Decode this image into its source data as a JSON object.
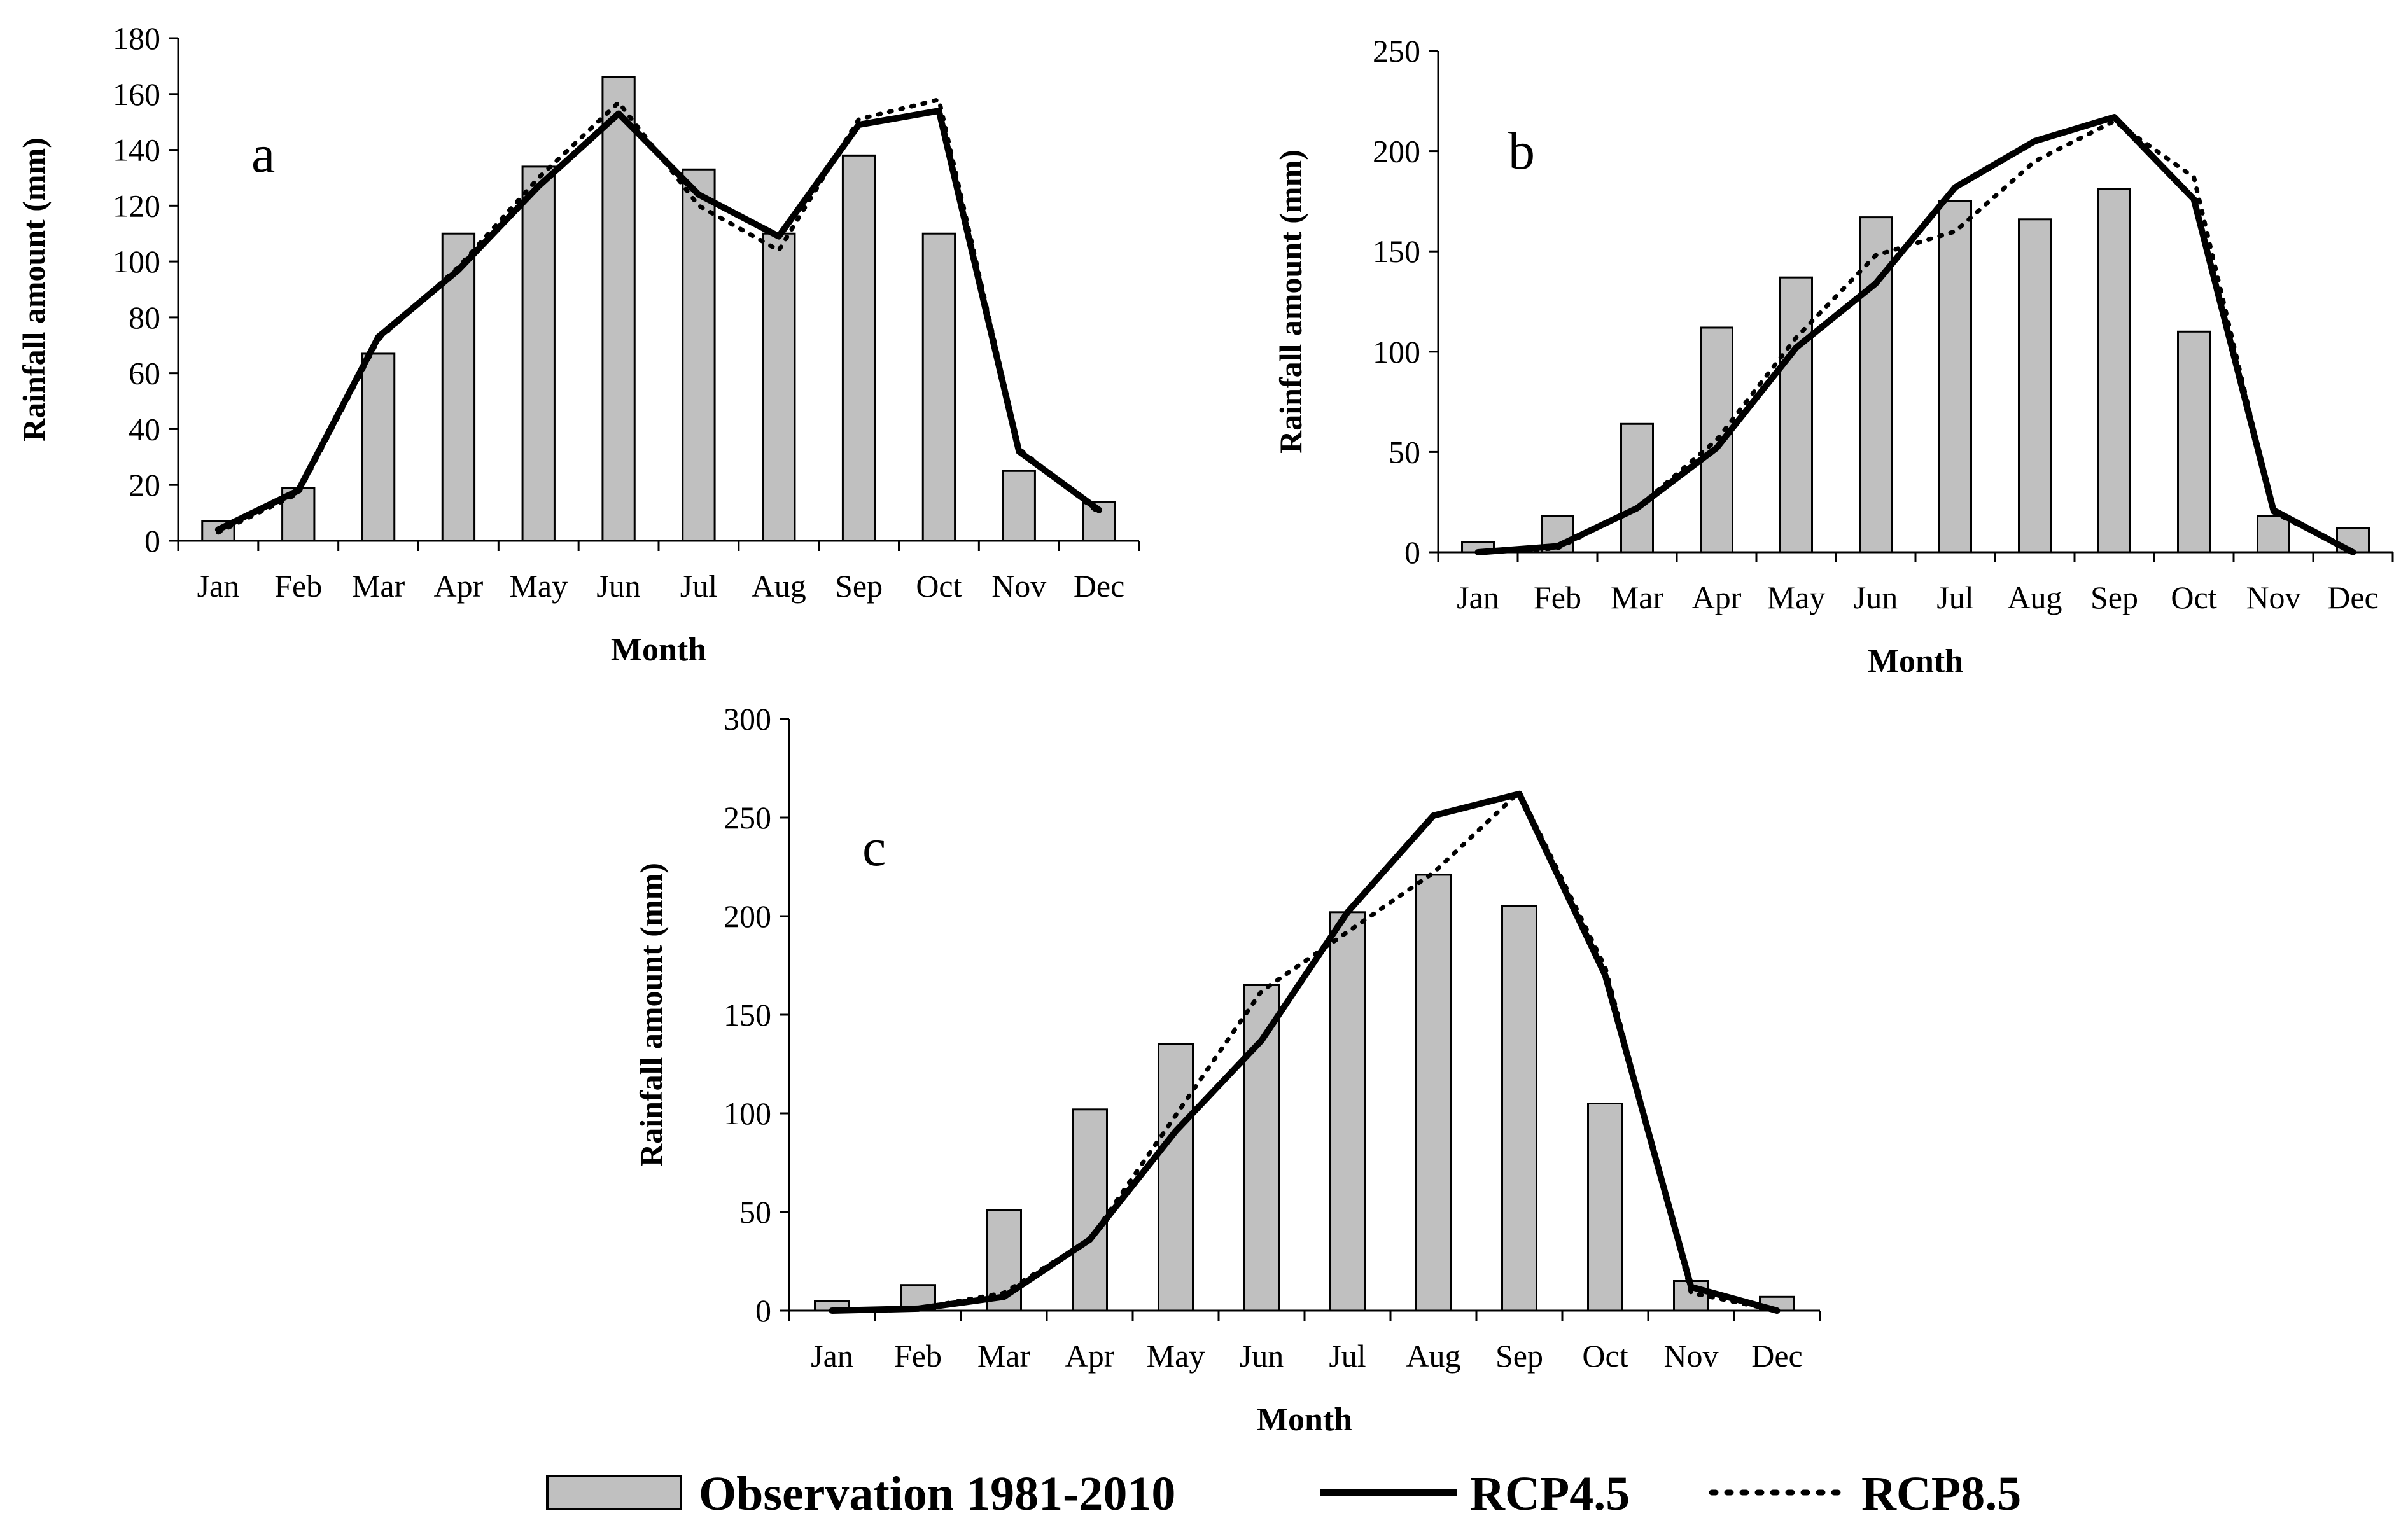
{
  "chart_data": [
    {
      "panel": "a",
      "type": "bar",
      "categories": [
        "Jan",
        "Feb",
        "Mar",
        "Apr",
        "May",
        "Jun",
        "Jul",
        "Aug",
        "Sep",
        "Oct",
        "Nov",
        "Dec"
      ],
      "xlabel": "Month",
      "ylabel": "Rainfall amount (mm)",
      "ylim": [
        0,
        180
      ],
      "yticks": [
        0,
        20,
        40,
        60,
        80,
        100,
        120,
        140,
        160,
        180
      ],
      "series": [
        {
          "name": "Observation 1981-2010",
          "kind": "bar",
          "values": [
            7,
            19,
            67,
            110,
            134,
            166,
            133,
            110,
            138,
            110,
            25,
            14
          ]
        },
        {
          "name": "RCP4.5",
          "kind": "line",
          "values": [
            4,
            18,
            73,
            97,
            127,
            153,
            124,
            109,
            149,
            154,
            32,
            11
          ]
        },
        {
          "name": "RCP8.5",
          "kind": "dotted",
          "values": [
            3,
            17,
            72,
            98,
            130,
            157,
            120,
            104,
            151,
            158,
            33,
            10
          ]
        }
      ]
    },
    {
      "panel": "b",
      "type": "bar",
      "categories": [
        "Jan",
        "Feb",
        "Mar",
        "Apr",
        "May",
        "Jun",
        "Jul",
        "Aug",
        "Sep",
        "Oct",
        "Nov",
        "Dec"
      ],
      "xlabel": "Month",
      "ylabel": "Rainfall amount (mm)",
      "ylim": [
        0,
        250
      ],
      "yticks": [
        0,
        50,
        100,
        150,
        200,
        250
      ],
      "series": [
        {
          "name": "Observation 1981-2010",
          "kind": "bar",
          "values": [
            5,
            18,
            64,
            112,
            137,
            167,
            175,
            166,
            181,
            110,
            18,
            12
          ]
        },
        {
          "name": "RCP4.5",
          "kind": "line",
          "values": [
            0,
            3,
            22,
            52,
            102,
            134,
            182,
            205,
            217,
            176,
            21,
            0
          ]
        },
        {
          "name": "RCP8.5",
          "kind": "dotted",
          "values": [
            0,
            2,
            22,
            56,
            107,
            148,
            160,
            195,
            215,
            187,
            20,
            0
          ]
        }
      ]
    },
    {
      "panel": "c",
      "type": "bar",
      "categories": [
        "Jan",
        "Feb",
        "Mar",
        "Apr",
        "May",
        "Jun",
        "Jul",
        "Aug",
        "Sep",
        "Oct",
        "Nov",
        "Dec"
      ],
      "xlabel": "Month",
      "ylabel": "Rainfall amount (mm)",
      "ylim": [
        0,
        300
      ],
      "yticks": [
        0,
        50,
        100,
        150,
        200,
        250,
        300
      ],
      "series": [
        {
          "name": "Observation 1981-2010",
          "kind": "bar",
          "values": [
            5,
            13,
            51,
            102,
            135,
            165,
            202,
            221,
            205,
            105,
            15,
            7
          ]
        },
        {
          "name": "RCP4.5",
          "kind": "line",
          "values": [
            0,
            1,
            7,
            36,
            91,
            137,
            202,
            251,
            262,
            170,
            12,
            0
          ]
        },
        {
          "name": "RCP8.5",
          "kind": "dotted",
          "values": [
            0,
            1,
            9,
            36,
            99,
            162,
            192,
            222,
            263,
            174,
            9,
            0
          ]
        }
      ]
    }
  ],
  "legend": {
    "position": "bottom-center",
    "items": [
      {
        "label": "Observation 1981-2010",
        "kind": "bar"
      },
      {
        "label": "RCP4.5",
        "kind": "line"
      },
      {
        "label": "RCP8.5",
        "kind": "dotted"
      }
    ]
  },
  "colors": {
    "bar_fill": "#c0c0c0",
    "line": "#000000"
  }
}
